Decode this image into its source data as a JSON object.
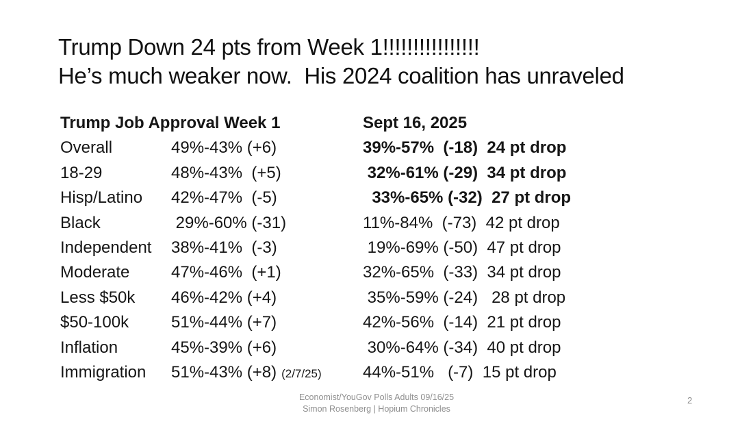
{
  "slide": {
    "title_line1": "Trump Down 24 pts from Week 1!!!!!!!!!!!!!!!!",
    "title_line2": "He’s much weaker now.  His 2024 coalition has unraveled",
    "footer_line1": "Economist/YouGov Polls Adults 09/16/25",
    "footer_line2": "Simon Rosenberg | Hopium Chronicles",
    "page_number": "2"
  },
  "table": {
    "header_left": "Trump Job Approval Week 1",
    "header_right": "Sept 16, 2025",
    "rows": [
      {
        "label": "Overall",
        "week1": "49%-43% (+6)",
        "sept16": "39%-57%  (-18)  24 pt drop"
      },
      {
        "label": "18-29",
        "week1": "48%-43%  (+5)",
        "sept16": " 32%-61% (-29)  34 pt drop"
      },
      {
        "label": "Hisp/Latino",
        "week1": "42%-47%  (-5)",
        "sept16": "  33%-65% (-32)  27 pt drop"
      },
      {
        "label": "Black",
        "week1": " 29%-60% (-31)",
        "sept16": "11%-84%  (-73)  42 pt drop"
      },
      {
        "label": "Independent",
        "week1": "38%-41%  (-3)",
        "sept16": " 19%-69% (-50)  47 pt drop"
      },
      {
        "label": "Moderate",
        "week1": "47%-46%  (+1)",
        "sept16": "32%-65%  (-33)  34 pt drop"
      },
      {
        "label": "Less $50k",
        "week1": "46%-42% (+4)",
        "sept16": " 35%-59% (-24)   28 pt drop"
      },
      {
        "label": "$50-100k",
        "week1": "51%-44% (+7)",
        "sept16": "42%-56%  (-14)  21 pt drop"
      },
      {
        "label": "Inflation",
        "week1": "45%-39% (+6)",
        "sept16": " 30%-64% (-34)  40 pt drop"
      },
      {
        "label": "Immigration",
        "week1": "51%-43% (+8)",
        "note": "(2/7/25)",
        "sept16": "44%-51%   (-7)  15 pt drop"
      }
    ]
  }
}
